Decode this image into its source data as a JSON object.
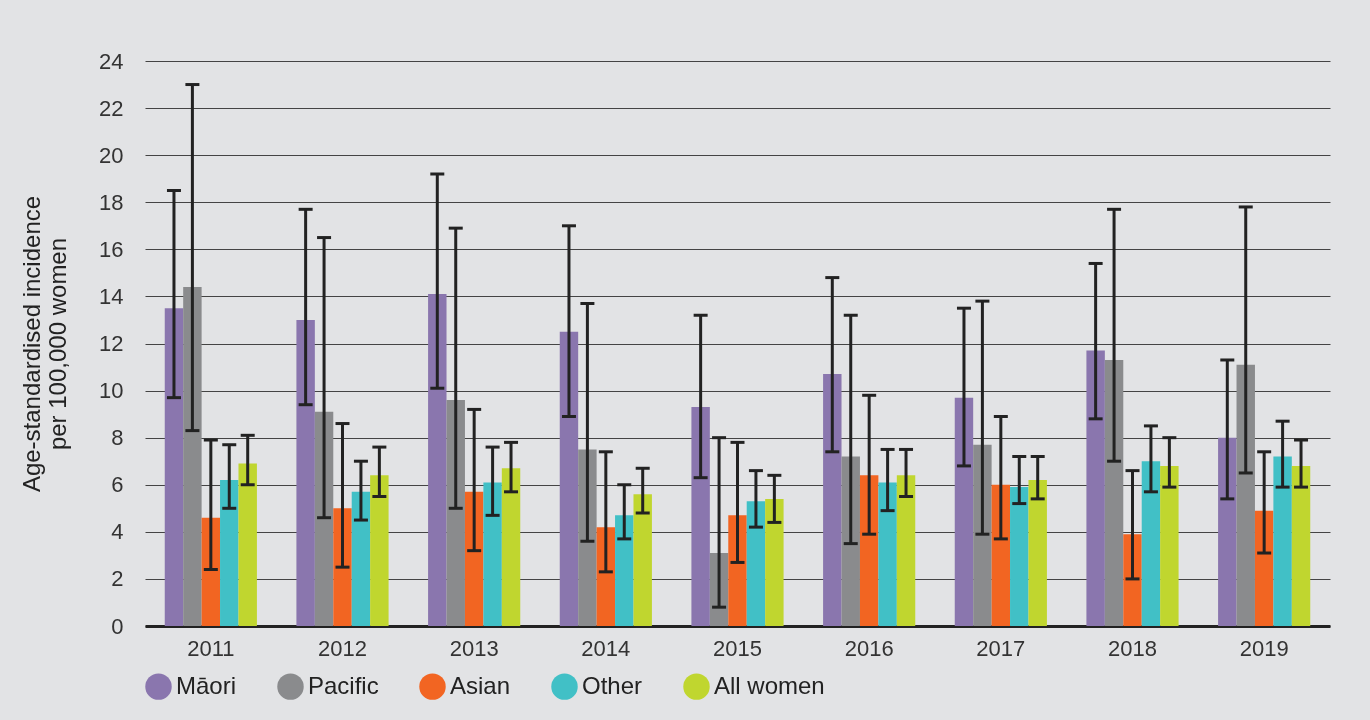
{
  "chart_data": {
    "type": "bar",
    "ylabel": "Age-standardised incidence\nper 100,000 women",
    "categories": [
      "2011",
      "2012",
      "2013",
      "2014",
      "2015",
      "2016",
      "2017",
      "2018",
      "2019"
    ],
    "ylim": [
      0,
      24
    ],
    "yticks": [
      0,
      2,
      4,
      6,
      8,
      10,
      12,
      14,
      16,
      18,
      20,
      22,
      24
    ],
    "grid": "y",
    "legend": "bottom",
    "series": [
      {
        "name": "Māori",
        "color": "#8a76ae",
        "values": [
          13.5,
          13.0,
          14.1,
          12.5,
          9.3,
          10.7,
          9.7,
          11.7,
          8.0
        ],
        "errors": [
          [
            9.7,
            18.5
          ],
          [
            9.4,
            17.7
          ],
          [
            10.1,
            19.2
          ],
          [
            8.9,
            17.0
          ],
          [
            6.3,
            13.2
          ],
          [
            7.4,
            14.8
          ],
          [
            6.8,
            13.5
          ],
          [
            8.8,
            15.4
          ],
          [
            5.4,
            11.3
          ]
        ]
      },
      {
        "name": "Pacific",
        "color": "#8a8b8d",
        "values": [
          14.4,
          9.1,
          9.6,
          7.5,
          3.1,
          7.2,
          7.7,
          11.3,
          11.1
        ],
        "errors": [
          [
            8.3,
            23.0
          ],
          [
            4.6,
            16.5
          ],
          [
            5.0,
            16.9
          ],
          [
            3.6,
            13.7
          ],
          [
            0.8,
            8.0
          ],
          [
            3.5,
            13.2
          ],
          [
            3.9,
            13.8
          ],
          [
            7.0,
            17.7
          ],
          [
            6.5,
            17.8
          ]
        ]
      },
      {
        "name": "Asian",
        "color": "#f26522",
        "values": [
          4.6,
          5.0,
          5.7,
          4.2,
          4.7,
          6.4,
          6.0,
          3.9,
          4.9
        ],
        "errors": [
          [
            2.4,
            7.9
          ],
          [
            2.5,
            8.6
          ],
          [
            3.2,
            9.2
          ],
          [
            2.3,
            7.4
          ],
          [
            2.7,
            7.8
          ],
          [
            3.9,
            9.8
          ],
          [
            3.7,
            8.9
          ],
          [
            2.0,
            6.6
          ],
          [
            3.1,
            7.4
          ]
        ]
      },
      {
        "name": "Other",
        "color": "#41c0c6",
        "values": [
          6.2,
          5.7,
          6.1,
          4.7,
          5.3,
          6.1,
          5.9,
          7.0,
          7.2
        ],
        "errors": [
          [
            5.0,
            7.7
          ],
          [
            4.5,
            7.0
          ],
          [
            4.7,
            7.6
          ],
          [
            3.7,
            6.0
          ],
          [
            4.2,
            6.6
          ],
          [
            4.9,
            7.5
          ],
          [
            5.2,
            7.2
          ],
          [
            5.7,
            8.5
          ],
          [
            5.9,
            8.7
          ]
        ]
      },
      {
        "name": "All women",
        "color": "#c0d62f",
        "values": [
          6.9,
          6.4,
          6.7,
          5.6,
          5.4,
          6.4,
          6.2,
          6.8,
          6.8
        ],
        "errors": [
          [
            6.0,
            8.1
          ],
          [
            5.5,
            7.6
          ],
          [
            5.7,
            7.8
          ],
          [
            4.8,
            6.7
          ],
          [
            4.4,
            6.4
          ],
          [
            5.5,
            7.5
          ],
          [
            5.4,
            7.2
          ],
          [
            5.9,
            8.0
          ],
          [
            5.9,
            7.9
          ]
        ]
      }
    ]
  }
}
